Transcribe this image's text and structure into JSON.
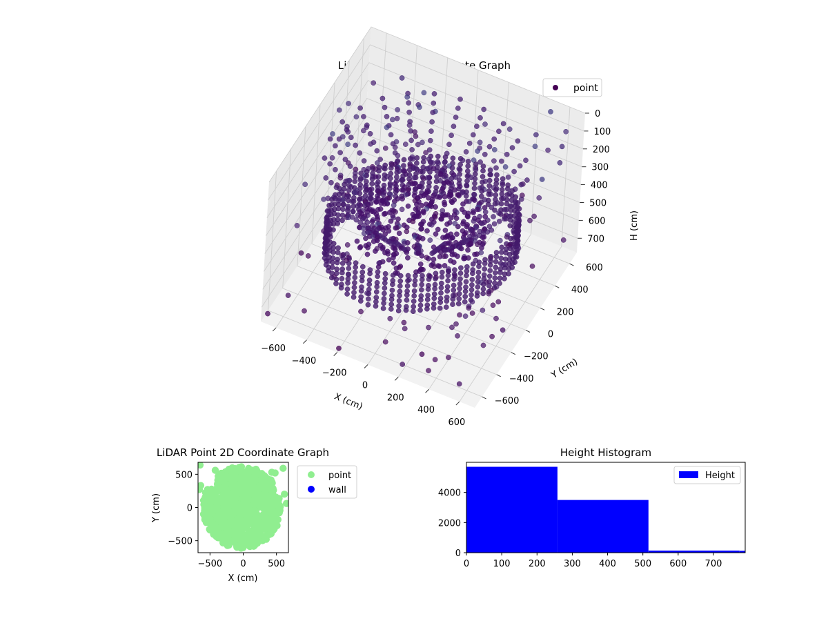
{
  "chart_data": [
    {
      "type": "scatter3d",
      "title": "LiDAR Point 3D Coordinate Graph",
      "xlabel": "X (cm)",
      "ylabel": "Y (cm)",
      "zlabel": "H (cm)",
      "xlim": [
        -700,
        700
      ],
      "ylim": [
        -700,
        700
      ],
      "zlim": [
        0,
        780
      ],
      "z_inverted": true,
      "xticks": [
        -600,
        -400,
        -200,
        0,
        200,
        400,
        600
      ],
      "yticks": [
        -600,
        -400,
        -200,
        0,
        200,
        400,
        600
      ],
      "zticks": [
        0,
        100,
        200,
        300,
        400,
        500,
        600,
        700
      ],
      "grid": true,
      "legend": {
        "position": "top-right",
        "entries": [
          "point"
        ]
      },
      "colormap": "viridis",
      "structure": {
        "wall_ring": {
          "radius_range": [
            450,
            580
          ],
          "height_range": [
            380,
            600
          ]
        },
        "floor_cluster": {
          "radius_range": [
            0,
            400
          ],
          "height_range": [
            350,
            500
          ]
        },
        "ceiling_spokes": {
          "count": 24,
          "radius_range": [
            300,
            600
          ],
          "height_range": [
            120,
            380
          ]
        }
      },
      "outliers": [
        {
          "x": -650,
          "y": 600,
          "h": 20
        },
        {
          "x": -540,
          "y": 560,
          "h": 10
        },
        {
          "x": -300,
          "y": 650,
          "h": 60
        },
        {
          "x": 500,
          "y": 650,
          "h": 30
        },
        {
          "x": 650,
          "y": 500,
          "h": 80
        },
        {
          "x": 620,
          "y": 300,
          "h": 150
        },
        {
          "x": -680,
          "y": -200,
          "h": 700
        },
        {
          "x": -620,
          "y": -500,
          "h": 730
        },
        {
          "x": 550,
          "y": -600,
          "h": 760
        },
        {
          "x": 200,
          "y": -650,
          "h": 740
        },
        {
          "x": -200,
          "y": -680,
          "h": 770
        },
        {
          "x": 680,
          "y": -300,
          "h": 600
        },
        {
          "x": 600,
          "y": 600,
          "h": 250
        },
        {
          "x": -650,
          "y": 200,
          "h": 300
        },
        {
          "x": 300,
          "y": -600,
          "h": 680
        },
        {
          "x": -450,
          "y": 620,
          "h": 150
        },
        {
          "x": 420,
          "y": 640,
          "h": 180
        },
        {
          "x": -680,
          "y": -650,
          "h": 760
        }
      ]
    },
    {
      "type": "scatter",
      "title": "LiDAR Point 2D Coordinate Graph",
      "xlabel": "X (cm)",
      "ylabel": "Y (cm)",
      "xlim": [
        -680,
        680
      ],
      "ylim": [
        -680,
        680
      ],
      "xticks": [
        -500,
        0,
        500
      ],
      "yticks": [
        -500,
        0,
        500
      ],
      "legend": {
        "position": "outside-right",
        "entries": [
          {
            "name": "point",
            "color": "#90ee90"
          },
          {
            "name": "wall",
            "color": "#0000ff"
          }
        ]
      },
      "series": [
        {
          "name": "point",
          "color": "#90ee90",
          "description_points": [
            {
              "x": -650,
              "y": 640
            },
            {
              "x": -420,
              "y": 560
            },
            {
              "x": 430,
              "y": 530
            },
            {
              "x": 480,
              "y": 520
            },
            {
              "x": 600,
              "y": 590
            },
            {
              "x": 620,
              "y": 200
            },
            {
              "x": 650,
              "y": 60
            },
            {
              "x": -660,
              "y": 270
            },
            {
              "x": -640,
              "y": 330
            },
            {
              "x": 200,
              "y": 560
            }
          ]
        },
        {
          "name": "wall",
          "color": "#0000ff",
          "points": []
        }
      ]
    },
    {
      "type": "bar",
      "title": "Height Histogram",
      "xlabel": "",
      "ylabel": "",
      "xlim": [
        0,
        790
      ],
      "ylim": [
        0,
        6000
      ],
      "xticks": [
        0,
        100,
        200,
        300,
        400,
        500,
        600,
        700
      ],
      "yticks": [
        0,
        2000,
        4000
      ],
      "legend": {
        "position": "top-right",
        "entries": [
          "Height"
        ]
      },
      "color": "#0000ff",
      "bins": [
        {
          "from": 0,
          "to": 258,
          "count": 5700
        },
        {
          "from": 258,
          "to": 516,
          "count": 3500
        },
        {
          "from": 516,
          "to": 774,
          "count": 140
        },
        {
          "from": 774,
          "to": 790,
          "count": 130
        }
      ]
    }
  ]
}
